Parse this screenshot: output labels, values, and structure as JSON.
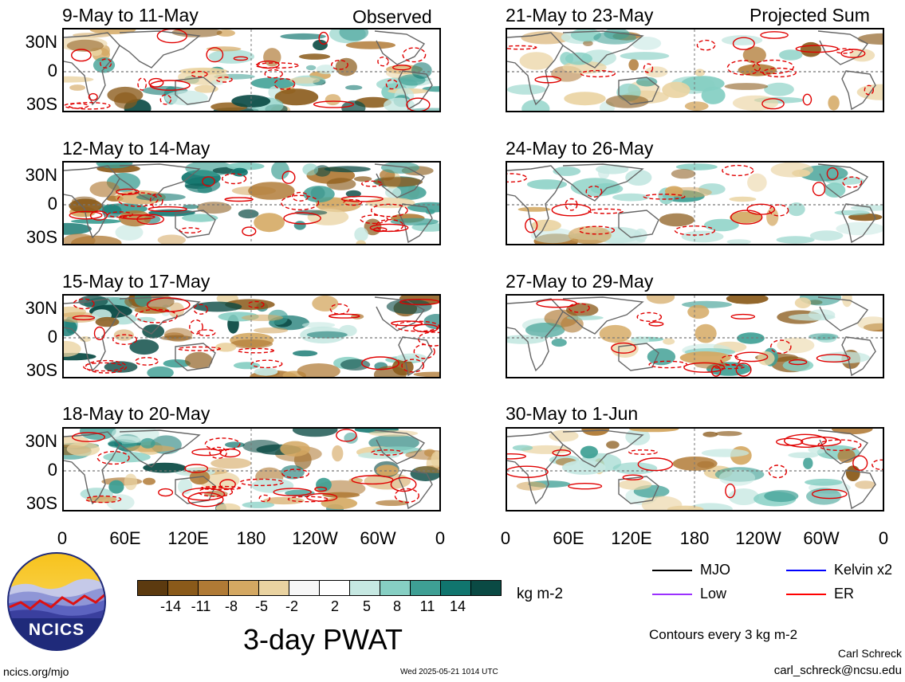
{
  "panels": [
    {
      "title": "9-May to 11-May",
      "corner": "Observed"
    },
    {
      "title": "21-May to 23-May",
      "corner": "Projected Sum"
    },
    {
      "title": "12-May to 14-May",
      "corner": ""
    },
    {
      "title": "24-May to 26-May",
      "corner": ""
    },
    {
      "title": "15-May to 17-May",
      "corner": ""
    },
    {
      "title": "27-May to 29-May",
      "corner": ""
    },
    {
      "title": "18-May to 20-May",
      "corner": ""
    },
    {
      "title": "30-May to 1-Jun",
      "corner": ""
    }
  ],
  "lat_labels": [
    "30N",
    "0",
    "30S"
  ],
  "lon_labels": [
    "0",
    "60E",
    "120E",
    "180",
    "120W",
    "60W",
    "0"
  ],
  "colorbar": {
    "colors": [
      "#5c3a0f",
      "#8a5a1a",
      "#b07a35",
      "#d4a862",
      "#ead3a1",
      "#f7f7f7",
      "#ffffff",
      "#c6e8e2",
      "#86cfc3",
      "#3e9f94",
      "#10756e",
      "#0a4a44"
    ],
    "tick_labels": [
      "-14",
      "-11",
      "-8",
      "-5",
      "-2",
      "2",
      "5",
      "8",
      "11",
      "14"
    ],
    "unit": "kg m-2"
  },
  "legend": {
    "items": [
      {
        "label": "MJO",
        "color": "#000000"
      },
      {
        "label": "Kelvin x2",
        "color": "#0000ff"
      },
      {
        "label": "Low",
        "color": "#9b30ff"
      },
      {
        "label": "ER",
        "color": "#ff0000"
      }
    ],
    "contours_note": "Contours every 3 kg m-2"
  },
  "main_title": "3-day PWAT",
  "logo_text": "NCICS",
  "footer": {
    "site": "ncics.org/mjo",
    "timestamp": "Wed 2025-05-21 1014 UTC",
    "author": "Carl Schreck",
    "email": "carl_schreck@ncsu.edu"
  }
}
